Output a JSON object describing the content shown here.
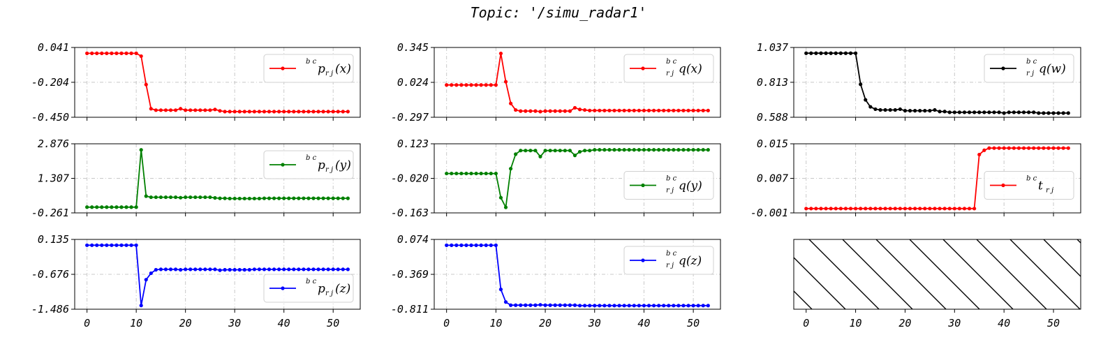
{
  "figure": {
    "title": "Topic: '/simu_radar1'"
  },
  "chart_data": [
    {
      "type": "line",
      "id": "p_x",
      "color": "#ff0000",
      "legend": {
        "sup": "b c",
        "main": "p",
        "sub": "r j",
        "arg": "(x)"
      },
      "legend_position": "top-right",
      "yticks": [
        "0.041",
        "-0.204",
        "-0.450"
      ],
      "ylim": [
        -0.45,
        0.041
      ],
      "xticks": [
        "0",
        "10",
        "20",
        "30",
        "40",
        "50"
      ],
      "xlim": [
        -2.5,
        55.5
      ],
      "show_xtick_labels": false,
      "grid": true,
      "x": [
        0,
        1,
        2,
        3,
        4,
        5,
        6,
        7,
        8,
        9,
        10,
        11,
        12,
        13,
        14,
        15,
        16,
        17,
        18,
        19,
        20,
        21,
        22,
        23,
        24,
        25,
        26,
        27,
        28,
        29,
        30,
        31,
        32,
        33,
        34,
        35,
        36,
        37,
        38,
        39,
        40,
        41,
        42,
        43,
        44,
        45,
        46,
        47,
        48,
        49,
        50,
        51,
        52,
        53
      ],
      "values": [
        0.0,
        0.0,
        0.0,
        0.0,
        0.0,
        0.0,
        0.0,
        0.0,
        0.0,
        0.0,
        0.0,
        -0.02,
        -0.22,
        -0.39,
        -0.4,
        -0.4,
        -0.4,
        -0.4,
        -0.4,
        -0.39,
        -0.4,
        -0.4,
        -0.4,
        -0.4,
        -0.4,
        -0.4,
        -0.395,
        -0.405,
        -0.41,
        -0.41,
        -0.41,
        -0.41,
        -0.41,
        -0.41,
        -0.41,
        -0.41,
        -0.41,
        -0.41,
        -0.41,
        -0.41,
        -0.41,
        -0.41,
        -0.41,
        -0.41,
        -0.41,
        -0.41,
        -0.41,
        -0.41,
        -0.41,
        -0.41,
        -0.41,
        -0.41,
        -0.41,
        -0.41
      ]
    },
    {
      "type": "line",
      "id": "q_x",
      "color": "#ff0000",
      "legend": {
        "sup": "b c",
        "main": "q(x)",
        "sub": "r j",
        "arg": ""
      },
      "legend_position": "top-right",
      "yticks": [
        "0.345",
        "0.024",
        "-0.297"
      ],
      "ylim": [
        -0.297,
        0.345
      ],
      "xticks": [
        "0",
        "10",
        "20",
        "30",
        "40",
        "50"
      ],
      "xlim": [
        -2.5,
        55.5
      ],
      "show_xtick_labels": false,
      "grid": true,
      "x": [
        0,
        1,
        2,
        3,
        4,
        5,
        6,
        7,
        8,
        9,
        10,
        11,
        12,
        13,
        14,
        15,
        16,
        17,
        18,
        19,
        20,
        21,
        22,
        23,
        24,
        25,
        26,
        27,
        28,
        29,
        30,
        31,
        32,
        33,
        34,
        35,
        36,
        37,
        38,
        39,
        40,
        41,
        42,
        43,
        44,
        45,
        46,
        47,
        48,
        49,
        50,
        51,
        52,
        53
      ],
      "values": [
        0.0,
        0.0,
        0.0,
        0.0,
        0.0,
        0.0,
        0.0,
        0.0,
        0.0,
        0.0,
        0.0,
        0.29,
        0.03,
        -0.17,
        -0.23,
        -0.24,
        -0.24,
        -0.24,
        -0.24,
        -0.245,
        -0.24,
        -0.24,
        -0.24,
        -0.24,
        -0.24,
        -0.24,
        -0.21,
        -0.225,
        -0.23,
        -0.235,
        -0.235,
        -0.235,
        -0.235,
        -0.235,
        -0.235,
        -0.235,
        -0.235,
        -0.235,
        -0.235,
        -0.235,
        -0.235,
        -0.235,
        -0.235,
        -0.235,
        -0.235,
        -0.235,
        -0.235,
        -0.235,
        -0.235,
        -0.235,
        -0.235,
        -0.235,
        -0.235,
        -0.235
      ]
    },
    {
      "type": "line",
      "id": "q_w",
      "color": "#000000",
      "legend": {
        "sup": "b c",
        "main": "q(w)",
        "sub": "r j",
        "arg": ""
      },
      "legend_position": "top-right",
      "yticks": [
        "1.037",
        "0.813",
        "0.588"
      ],
      "ylim": [
        0.588,
        1.037
      ],
      "xticks": [
        "0",
        "10",
        "20",
        "30",
        "40",
        "50"
      ],
      "xlim": [
        -2.5,
        55.5
      ],
      "show_xtick_labels": false,
      "grid": true,
      "x": [
        0,
        1,
        2,
        3,
        4,
        5,
        6,
        7,
        8,
        9,
        10,
        11,
        12,
        13,
        14,
        15,
        16,
        17,
        18,
        19,
        20,
        21,
        22,
        23,
        24,
        25,
        26,
        27,
        28,
        29,
        30,
        31,
        32,
        33,
        34,
        35,
        36,
        37,
        38,
        39,
        40,
        41,
        42,
        43,
        44,
        45,
        46,
        47,
        48,
        49,
        50,
        51,
        52,
        53
      ],
      "values": [
        1.0,
        1.0,
        1.0,
        1.0,
        1.0,
        1.0,
        1.0,
        1.0,
        1.0,
        1.0,
        1.0,
        0.8,
        0.7,
        0.655,
        0.64,
        0.635,
        0.635,
        0.635,
        0.635,
        0.64,
        0.63,
        0.63,
        0.63,
        0.63,
        0.63,
        0.63,
        0.635,
        0.625,
        0.625,
        0.62,
        0.62,
        0.62,
        0.62,
        0.62,
        0.62,
        0.62,
        0.62,
        0.62,
        0.62,
        0.62,
        0.615,
        0.62,
        0.62,
        0.62,
        0.62,
        0.62,
        0.62,
        0.615,
        0.615,
        0.615,
        0.615,
        0.615,
        0.615,
        0.615
      ]
    },
    {
      "type": "line",
      "id": "p_y",
      "color": "#008000",
      "legend": {
        "sup": "b c",
        "main": "p",
        "sub": "r j",
        "arg": "(y)"
      },
      "legend_position": "top-right",
      "yticks": [
        "2.876",
        "1.307",
        "-0.261"
      ],
      "ylim": [
        -0.261,
        2.876
      ],
      "xticks": [
        "0",
        "10",
        "20",
        "30",
        "40",
        "50"
      ],
      "xlim": [
        -2.5,
        55.5
      ],
      "show_xtick_labels": false,
      "grid": true,
      "x": [
        0,
        1,
        2,
        3,
        4,
        5,
        6,
        7,
        8,
        9,
        10,
        11,
        12,
        13,
        14,
        15,
        16,
        17,
        18,
        19,
        20,
        21,
        22,
        23,
        24,
        25,
        26,
        27,
        28,
        29,
        30,
        31,
        32,
        33,
        34,
        35,
        36,
        37,
        38,
        39,
        40,
        41,
        42,
        43,
        44,
        45,
        46,
        47,
        48,
        49,
        50,
        51,
        52,
        53
      ],
      "values": [
        0.0,
        0.0,
        0.0,
        0.0,
        0.0,
        0.0,
        0.0,
        0.0,
        0.0,
        0.0,
        0.0,
        2.6,
        0.5,
        0.45,
        0.45,
        0.45,
        0.45,
        0.45,
        0.45,
        0.43,
        0.45,
        0.45,
        0.45,
        0.45,
        0.45,
        0.45,
        0.42,
        0.4,
        0.4,
        0.39,
        0.39,
        0.39,
        0.39,
        0.39,
        0.39,
        0.39,
        0.4,
        0.4,
        0.4,
        0.4,
        0.4,
        0.4,
        0.4,
        0.4,
        0.4,
        0.4,
        0.4,
        0.4,
        0.4,
        0.4,
        0.4,
        0.4,
        0.4,
        0.4
      ]
    },
    {
      "type": "line",
      "id": "q_y",
      "color": "#008000",
      "legend": {
        "sup": "b c",
        "main": "q(y)",
        "sub": "r j",
        "arg": ""
      },
      "legend_position": "center-right",
      "yticks": [
        "0.123",
        "-0.020",
        "-0.163"
      ],
      "ylim": [
        -0.163,
        0.123
      ],
      "xticks": [
        "0",
        "10",
        "20",
        "30",
        "40",
        "50"
      ],
      "xlim": [
        -2.5,
        55.5
      ],
      "show_xtick_labels": false,
      "grid": true,
      "x": [
        0,
        1,
        2,
        3,
        4,
        5,
        6,
        7,
        8,
        9,
        10,
        11,
        12,
        13,
        14,
        15,
        16,
        17,
        18,
        19,
        20,
        21,
        22,
        23,
        24,
        25,
        26,
        27,
        28,
        29,
        30,
        31,
        32,
        33,
        34,
        35,
        36,
        37,
        38,
        39,
        40,
        41,
        42,
        43,
        44,
        45,
        46,
        47,
        48,
        49,
        50,
        51,
        52,
        53
      ],
      "values": [
        0.0,
        0.0,
        0.0,
        0.0,
        0.0,
        0.0,
        0.0,
        0.0,
        0.0,
        0.0,
        0.0,
        -0.1,
        -0.14,
        0.02,
        0.08,
        0.095,
        0.095,
        0.095,
        0.095,
        0.07,
        0.095,
        0.095,
        0.095,
        0.095,
        0.095,
        0.095,
        0.075,
        0.09,
        0.095,
        0.095,
        0.098,
        0.098,
        0.098,
        0.098,
        0.098,
        0.098,
        0.098,
        0.098,
        0.098,
        0.098,
        0.098,
        0.098,
        0.098,
        0.098,
        0.098,
        0.098,
        0.098,
        0.098,
        0.098,
        0.098,
        0.098,
        0.098,
        0.098,
        0.098
      ]
    },
    {
      "type": "line",
      "id": "t",
      "color": "#ff0000",
      "legend": {
        "sup": "b c",
        "main": "t",
        "sub": "r j",
        "arg": ""
      },
      "legend_position": "center-right",
      "yticks": [
        "0.015",
        "0.007",
        "-0.001"
      ],
      "ylim": [
        -0.001,
        0.015
      ],
      "xticks": [
        "0",
        "10",
        "20",
        "30",
        "40",
        "50"
      ],
      "xlim": [
        -2.5,
        55.5
      ],
      "show_xtick_labels": false,
      "grid": true,
      "x": [
        0,
        1,
        2,
        3,
        4,
        5,
        6,
        7,
        8,
        9,
        10,
        11,
        12,
        13,
        14,
        15,
        16,
        17,
        18,
        19,
        20,
        21,
        22,
        23,
        24,
        25,
        26,
        27,
        28,
        29,
        30,
        31,
        32,
        33,
        34,
        35,
        36,
        37,
        38,
        39,
        40,
        41,
        42,
        43,
        44,
        45,
        46,
        47,
        48,
        49,
        50,
        51,
        52,
        53
      ],
      "values": [
        0.0,
        0.0,
        0.0,
        0.0,
        0.0,
        0.0,
        0.0,
        0.0,
        0.0,
        0.0,
        0.0,
        0.0,
        0.0,
        0.0,
        0.0,
        0.0,
        0.0,
        0.0,
        0.0,
        0.0,
        0.0,
        0.0,
        0.0,
        0.0,
        0.0,
        0.0,
        0.0,
        0.0,
        0.0,
        0.0,
        0.0,
        0.0,
        0.0,
        0.0,
        0.0,
        0.0125,
        0.0135,
        0.014,
        0.014,
        0.014,
        0.014,
        0.014,
        0.014,
        0.014,
        0.014,
        0.014,
        0.014,
        0.014,
        0.014,
        0.014,
        0.014,
        0.014,
        0.014,
        0.014
      ]
    },
    {
      "type": "line",
      "id": "p_z",
      "color": "#0000ff",
      "legend": {
        "sup": "b c",
        "main": "p",
        "sub": "r j",
        "arg": "(z)"
      },
      "legend_position": "bottom-right",
      "yticks": [
        "0.135",
        "-0.676",
        "-1.486"
      ],
      "ylim": [
        -1.486,
        0.135
      ],
      "xticks": [
        "0",
        "10",
        "20",
        "30",
        "40",
        "50"
      ],
      "xlim": [
        -2.5,
        55.5
      ],
      "show_xtick_labels": true,
      "grid": true,
      "x": [
        0,
        1,
        2,
        3,
        4,
        5,
        6,
        7,
        8,
        9,
        10,
        11,
        12,
        13,
        14,
        15,
        16,
        17,
        18,
        19,
        20,
        21,
        22,
        23,
        24,
        25,
        26,
        27,
        28,
        29,
        30,
        31,
        32,
        33,
        34,
        35,
        36,
        37,
        38,
        39,
        40,
        41,
        42,
        43,
        44,
        45,
        46,
        47,
        48,
        49,
        50,
        51,
        52,
        53
      ],
      "values": [
        0.0,
        0.0,
        0.0,
        0.0,
        0.0,
        0.0,
        0.0,
        0.0,
        0.0,
        0.0,
        0.0,
        -1.4,
        -0.8,
        -0.65,
        -0.57,
        -0.56,
        -0.56,
        -0.56,
        -0.56,
        -0.57,
        -0.56,
        -0.56,
        -0.56,
        -0.56,
        -0.56,
        -0.56,
        -0.56,
        -0.58,
        -0.57,
        -0.57,
        -0.57,
        -0.57,
        -0.57,
        -0.57,
        -0.56,
        -0.56,
        -0.56,
        -0.56,
        -0.56,
        -0.56,
        -0.56,
        -0.56,
        -0.56,
        -0.56,
        -0.56,
        -0.56,
        -0.56,
        -0.56,
        -0.56,
        -0.56,
        -0.56,
        -0.56,
        -0.56,
        -0.56
      ]
    },
    {
      "type": "line",
      "id": "q_z",
      "color": "#0000ff",
      "legend": {
        "sup": "b c",
        "main": "q(z)",
        "sub": "r j",
        "arg": ""
      },
      "legend_position": "top-right",
      "yticks": [
        "0.074",
        "-0.369",
        "-0.811"
      ],
      "ylim": [
        -0.811,
        0.074
      ],
      "xticks": [
        "0",
        "10",
        "20",
        "30",
        "40",
        "50"
      ],
      "xlim": [
        -2.5,
        55.5
      ],
      "show_xtick_labels": true,
      "grid": true,
      "x": [
        0,
        1,
        2,
        3,
        4,
        5,
        6,
        7,
        8,
        9,
        10,
        11,
        12,
        13,
        14,
        15,
        16,
        17,
        18,
        19,
        20,
        21,
        22,
        23,
        24,
        25,
        26,
        27,
        28,
        29,
        30,
        31,
        32,
        33,
        34,
        35,
        36,
        37,
        38,
        39,
        40,
        41,
        42,
        43,
        44,
        45,
        46,
        47,
        48,
        49,
        50,
        51,
        52,
        53
      ],
      "values": [
        0.0,
        0.0,
        0.0,
        0.0,
        0.0,
        0.0,
        0.0,
        0.0,
        0.0,
        0.0,
        0.0,
        -0.56,
        -0.72,
        -0.76,
        -0.76,
        -0.76,
        -0.76,
        -0.76,
        -0.76,
        -0.755,
        -0.76,
        -0.76,
        -0.76,
        -0.76,
        -0.76,
        -0.76,
        -0.76,
        -0.765,
        -0.765,
        -0.765,
        -0.765,
        -0.765,
        -0.765,
        -0.765,
        -0.765,
        -0.765,
        -0.765,
        -0.765,
        -0.765,
        -0.765,
        -0.765,
        -0.765,
        -0.765,
        -0.765,
        -0.765,
        -0.765,
        -0.765,
        -0.765,
        -0.765,
        -0.765,
        -0.765,
        -0.765,
        -0.765,
        -0.765
      ]
    },
    {
      "type": "empty",
      "id": "blank",
      "fill": "hatched",
      "xticks": [
        "0",
        "10",
        "20",
        "30",
        "40",
        "50"
      ],
      "xlim": [
        -2.5,
        55.5
      ],
      "show_xtick_labels": true
    }
  ]
}
